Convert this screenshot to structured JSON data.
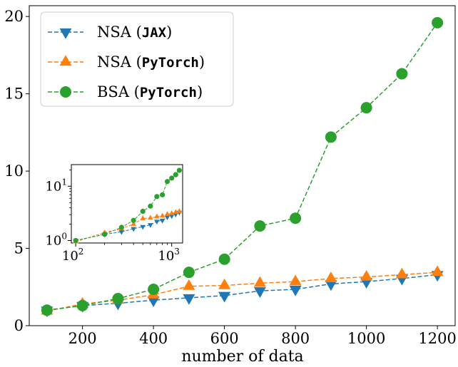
{
  "chart_data": [
    {
      "type": "line",
      "xlabel": "number of data",
      "ylabel": "",
      "xlim": [
        50,
        1250
      ],
      "ylim": [
        0,
        20.7
      ],
      "xticks": [
        "200",
        "400",
        "600",
        "800",
        "1000",
        "1200"
      ],
      "yticks": [
        "0",
        "5",
        "10",
        "15",
        "20"
      ],
      "grid": false,
      "legend_position": "top-left",
      "x": [
        100,
        200,
        300,
        400,
        500,
        600,
        700,
        800,
        900,
        1000,
        1100,
        1200
      ],
      "series": [
        {
          "name": "NSA (JAX)",
          "name_prefix": "NSA (",
          "name_code": "JAX",
          "name_suffix": ")",
          "marker": "triangle-down",
          "color": "#1f77b4",
          "values": [
            1.0,
            1.3,
            1.45,
            1.65,
            1.8,
            1.95,
            2.25,
            2.35,
            2.7,
            2.85,
            3.05,
            3.3
          ]
        },
        {
          "name": "NSA (PyTorch)",
          "name_prefix": "NSA (",
          "name_code": "PyTorch",
          "name_suffix": ")",
          "marker": "triangle-up",
          "color": "#ff7f0e",
          "values": [
            0.95,
            1.4,
            1.65,
            2.0,
            2.55,
            2.6,
            2.75,
            2.85,
            3.05,
            3.15,
            3.3,
            3.45
          ]
        },
        {
          "name": "BSA (PyTorch)",
          "name_prefix": "BSA (",
          "name_code": "PyTorch",
          "name_suffix": ")",
          "marker": "circle",
          "color": "#2ca02c",
          "values": [
            1.0,
            1.3,
            1.75,
            2.35,
            3.45,
            4.3,
            6.45,
            6.95,
            12.2,
            14.1,
            16.3,
            19.6
          ]
        }
      ]
    },
    {
      "type": "line",
      "scale": "log-log",
      "xlim": [
        90,
        1300
      ],
      "ylim": [
        0.9,
        25
      ],
      "xticks": [
        {
          "base": "10",
          "exp": "2"
        },
        {
          "base": "10",
          "exp": "3"
        }
      ],
      "yticks": [
        {
          "base": "10",
          "exp": "0"
        },
        {
          "base": "10",
          "exp": "1"
        }
      ],
      "grid": false,
      "series_from": "same data as main chart"
    }
  ]
}
